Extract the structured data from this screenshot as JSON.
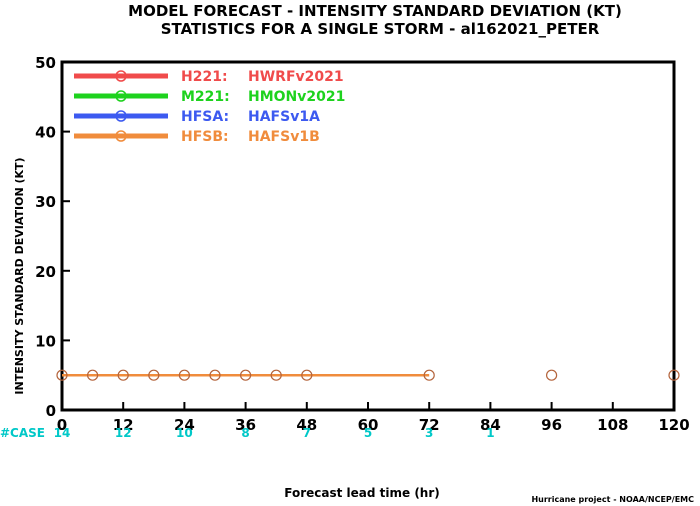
{
  "chart_data": {
    "type": "line",
    "title_line1": "MODEL FORECAST - INTENSITY STANDARD DEVIATION (KT)",
    "title_line2": "STATISTICS FOR A SINGLE STORM - al162021_PETER",
    "ylabel": "INTENSITY STANDARD DEVIATION (KT)",
    "xlabel": "Forecast lead time (hr)",
    "credit": "Hurricane project - NOAA/NCEP/EMC",
    "xlim": [
      0,
      120
    ],
    "ylim": [
      0,
      50
    ],
    "x_ticks": [
      0,
      12,
      24,
      36,
      48,
      60,
      72,
      84,
      96,
      108,
      120
    ],
    "y_ticks": [
      0,
      10,
      20,
      30,
      40,
      50
    ],
    "case_label": "#CASE",
    "case_color": "#00c8c8",
    "cases": [
      {
        "x": 0,
        "label": "14"
      },
      {
        "x": 12,
        "label": "12"
      },
      {
        "x": 24,
        "label": "10"
      },
      {
        "x": 36,
        "label": "8"
      },
      {
        "x": 48,
        "label": "7"
      },
      {
        "x": 60,
        "label": "5"
      },
      {
        "x": 72,
        "label": "3"
      },
      {
        "x": 84,
        "label": "1"
      }
    ],
    "series": [
      {
        "name": "H221:",
        "model": "HWRFv2021",
        "color": "#f04b4b",
        "x": [],
        "y": []
      },
      {
        "name": "M221:",
        "model": "HMONv2021",
        "color": "#1ed21e",
        "x": [],
        "y": []
      },
      {
        "name": "HFSA:",
        "model": "HAFSv1A",
        "color": "#3c5af0",
        "x": [],
        "y": []
      },
      {
        "name": "HFSB:",
        "model": "HAFSv1B",
        "color": "#f08c3c",
        "x": [
          0,
          6,
          12,
          18,
          24,
          30,
          36,
          42,
          48,
          72
        ],
        "y": [
          5,
          5,
          5,
          5,
          5,
          5,
          5,
          5,
          5,
          5
        ]
      }
    ],
    "extra_markers": {
      "color": "#b4643c",
      "x": [
        96,
        120
      ],
      "y": [
        5,
        5
      ]
    }
  }
}
